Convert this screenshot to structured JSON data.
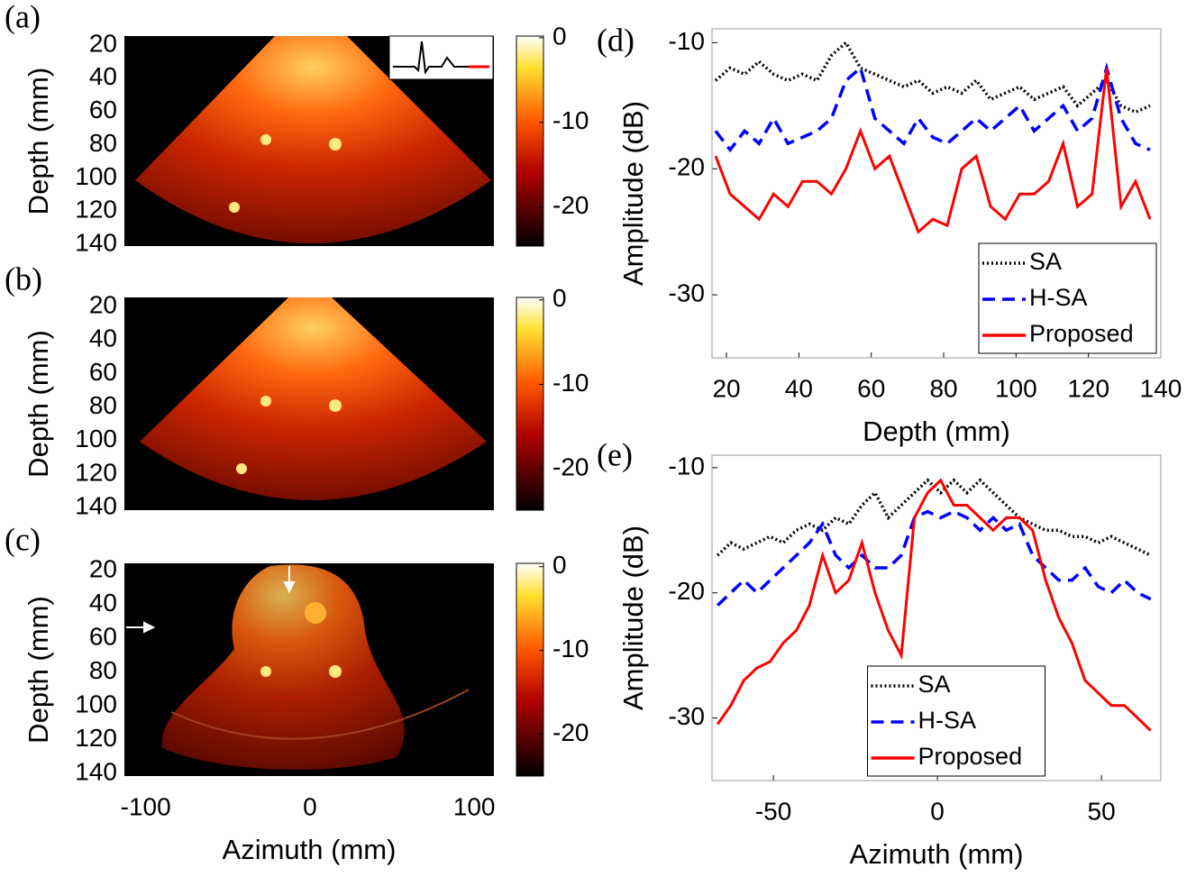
{
  "chart_data": [
    {
      "type": "image",
      "label": "(a)",
      "ylabel": "Depth (mm)",
      "ylim": [
        14.6,
        141
      ],
      "yreverse": true,
      "yticks": [
        20,
        40,
        60,
        80,
        100,
        120,
        140
      ],
      "clim": [
        -24.6,
        0.2
      ],
      "cticks": [
        0,
        -10,
        -20
      ]
    },
    {
      "type": "image",
      "label": "(b)",
      "ylabel": "Depth (mm)",
      "ylim": [
        14.6,
        141.6
      ],
      "yreverse": true,
      "yticks": [
        20,
        40,
        60,
        80,
        100,
        120,
        140
      ],
      "clim": [
        -24.9,
        0.3
      ],
      "cticks": [
        0,
        -10,
        -20
      ]
    },
    {
      "type": "image",
      "label": "(c)",
      "ylabel": "Depth (mm)",
      "xlabel": "Azimuth (mm)",
      "ylim": [
        15.7,
        141.6
      ],
      "yreverse": true,
      "yticks": [
        20,
        40,
        60,
        80,
        100,
        120,
        140
      ],
      "xlim": [
        -113,
        112
      ],
      "xticks": [
        -100,
        0,
        100
      ],
      "clim": [
        -25.0,
        0.4
      ],
      "cticks": [
        0,
        -10,
        -20
      ]
    },
    {
      "type": "line",
      "label": "(d)",
      "ylabel": "Amplitude (dB)",
      "xlabel": "Depth (mm)",
      "xlim": [
        16,
        140
      ],
      "xticks": [
        20,
        40,
        60,
        80,
        100,
        120,
        140
      ],
      "ylim": [
        -35,
        -8.9
      ],
      "yticks": [
        -10,
        -20,
        -30
      ],
      "legend": "lower right",
      "x": [
        17,
        21,
        25,
        29,
        33,
        37,
        41,
        45,
        49,
        53,
        57,
        61,
        65,
        69,
        73,
        77,
        81,
        85,
        89,
        93,
        97,
        101,
        105,
        109,
        113,
        117,
        121,
        125,
        129,
        133,
        137
      ],
      "series": [
        {
          "name": "SA",
          "color": "#000000",
          "style": "dotted",
          "values": [
            -13,
            -12,
            -12.5,
            -11.5,
            -12.5,
            -13,
            -12.5,
            -13,
            -11,
            -10,
            -12,
            -12.5,
            -13,
            -13.5,
            -13,
            -14,
            -13.5,
            -14,
            -13,
            -14.5,
            -14,
            -13.5,
            -14.5,
            -14,
            -13.5,
            -15,
            -14,
            -13,
            -15,
            -15.5,
            -15
          ]
        },
        {
          "name": "H-SA",
          "color": "#0000ff",
          "style": "dashed",
          "values": [
            -17,
            -18.5,
            -17,
            -18,
            -16,
            -18,
            -17.5,
            -17,
            -16,
            -13,
            -12,
            -16,
            -17,
            -18,
            -16,
            -17.5,
            -18,
            -17,
            -16,
            -17,
            -16,
            -15,
            -17,
            -16,
            -15,
            -17,
            -16,
            -12,
            -16,
            -18,
            -18.5
          ]
        },
        {
          "name": "Proposed",
          "color": "#ff0000",
          "style": "solid",
          "values": [
            -19,
            -22,
            -23,
            -24,
            -22,
            -23,
            -21,
            -21,
            -22,
            -20,
            -17,
            -20,
            -19,
            -22,
            -25,
            -24,
            -24.5,
            -20,
            -19,
            -23,
            -24,
            -22,
            -22,
            -21,
            -18,
            -23,
            -22,
            -12,
            -23,
            -21,
            -24
          ]
        }
      ]
    },
    {
      "type": "line",
      "label": "(e)",
      "ylabel": "Amplitude (dB)",
      "xlabel": "Azimuth (mm)",
      "xlim": [
        -68.7,
        68.1
      ],
      "xticks": [
        -50,
        0,
        50
      ],
      "ylim": [
        -35,
        -9
      ],
      "yticks": [
        -10,
        -20,
        -30
      ],
      "legend": "lower center",
      "x": [
        -67,
        -63,
        -59,
        -55,
        -51,
        -47,
        -43,
        -39,
        -35,
        -31,
        -27,
        -23,
        -19,
        -15,
        -11,
        -7,
        -3,
        1,
        5,
        9,
        13,
        17,
        21,
        25,
        29,
        33,
        37,
        41,
        45,
        49,
        53,
        57,
        61,
        65
      ],
      "series": [
        {
          "name": "SA",
          "color": "#000000",
          "style": "dotted",
          "values": [
            -17,
            -16,
            -16.5,
            -16,
            -15.5,
            -16,
            -15,
            -14.5,
            -15,
            -14,
            -14.5,
            -13,
            -12,
            -14,
            -13,
            -12,
            -11,
            -12,
            -11,
            -12,
            -11,
            -12,
            -13,
            -14,
            -14.5,
            -15,
            -15,
            -15.5,
            -15.5,
            -16,
            -15.5,
            -16,
            -16.5,
            -17
          ]
        },
        {
          "name": "H-SA",
          "color": "#0000ff",
          "style": "dashed",
          "values": [
            -21,
            -20,
            -19,
            -20,
            -19,
            -18,
            -17,
            -16,
            -14.5,
            -17,
            -18,
            -17,
            -18,
            -18,
            -17,
            -14,
            -13.5,
            -14,
            -13.5,
            -14,
            -15,
            -14,
            -15,
            -14.5,
            -17,
            -18,
            -19,
            -19,
            -18,
            -19.5,
            -20,
            -19,
            -20,
            -20.5
          ]
        },
        {
          "name": "Proposed",
          "color": "#ff0000",
          "style": "solid",
          "values": [
            -30.5,
            -29,
            -27,
            -26,
            -25.5,
            -24,
            -23,
            -21,
            -17,
            -20,
            -19,
            -16,
            -20,
            -23,
            -25,
            -14,
            -12,
            -11,
            -13,
            -13,
            -14,
            -15,
            -14,
            -14,
            -15,
            -19,
            -22,
            -24,
            -27,
            -28,
            -29,
            -29,
            -30,
            -31
          ]
        }
      ]
    }
  ]
}
